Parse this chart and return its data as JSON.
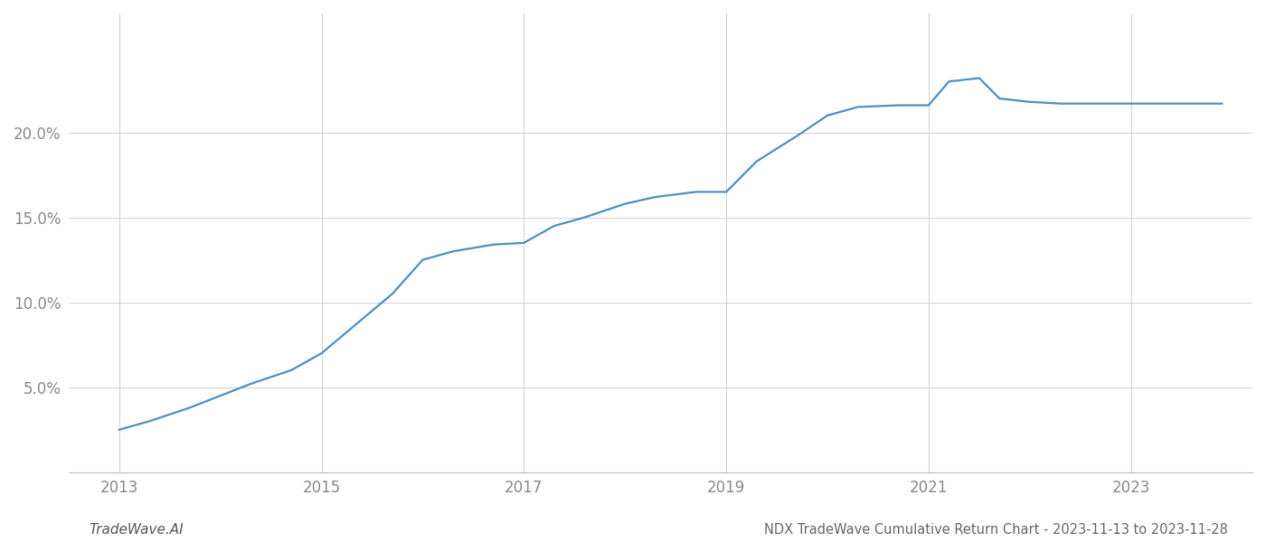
{
  "title": "NDX TradeWave Cumulative Return Chart - 2023-11-13 to 2023-11-28",
  "watermark": "TradeWave.AI",
  "line_color": "#4a90c4",
  "background_color": "#ffffff",
  "grid_color": "#d0d0d0",
  "years": [
    2013.0,
    2013.3,
    2013.7,
    2014.0,
    2014.3,
    2014.7,
    2015.0,
    2015.3,
    2015.7,
    2016.0,
    2016.3,
    2016.5,
    2016.7,
    2017.0,
    2017.3,
    2017.6,
    2018.0,
    2018.3,
    2018.7,
    2019.0,
    2019.3,
    2019.7,
    2020.0,
    2020.3,
    2020.7,
    2021.0,
    2021.2,
    2021.5,
    2021.7,
    2022.0,
    2022.3,
    2022.7,
    2023.0,
    2023.9
  ],
  "values": [
    2.5,
    3.0,
    3.8,
    4.5,
    5.2,
    6.0,
    7.0,
    8.5,
    10.5,
    12.5,
    13.0,
    13.2,
    13.4,
    13.5,
    14.5,
    15.0,
    15.8,
    16.2,
    16.5,
    16.5,
    18.3,
    19.8,
    21.0,
    21.5,
    21.6,
    21.6,
    23.0,
    23.2,
    22.0,
    21.8,
    21.7,
    21.7,
    21.7,
    21.7
  ],
  "xlim": [
    2012.5,
    2024.2
  ],
  "ylim": [
    0,
    27
  ],
  "xticks": [
    2013,
    2015,
    2017,
    2019,
    2021,
    2023
  ],
  "yticks": [
    5.0,
    10.0,
    15.0,
    20.0
  ],
  "ytick_labels": [
    "5.0%",
    "10.0%",
    "15.0%",
    "20.0%"
  ],
  "line_width": 1.6,
  "tick_label_color": "#888888",
  "title_color": "#666666",
  "watermark_color": "#555555",
  "title_fontsize": 10.5,
  "watermark_fontsize": 11,
  "tick_fontsize": 12
}
